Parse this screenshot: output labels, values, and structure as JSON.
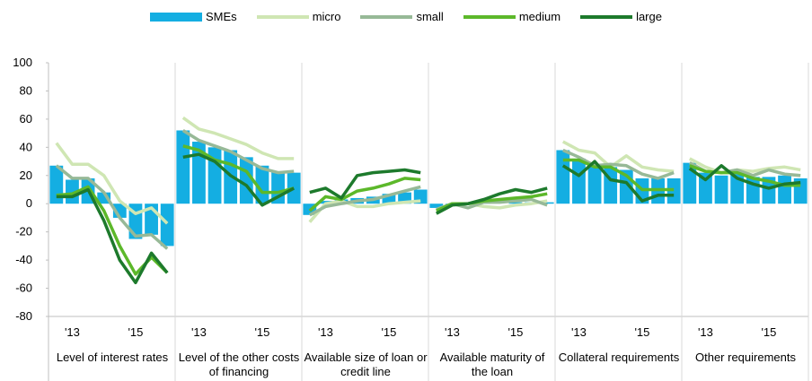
{
  "chart_data": {
    "type": "combo",
    "ylim": [
      -80,
      100
    ],
    "yticks": [
      -80,
      -60,
      -40,
      -20,
      0,
      20,
      40,
      60,
      80,
      100
    ],
    "categories": [
      null,
      "'13",
      null,
      null,
      null,
      "'15",
      null,
      null
    ],
    "panels": [
      "Level of interest rates",
      "Level of the other costs of financing",
      "Available size of loan or credit line",
      "Available maturity of the loan",
      "Collateral requirements",
      "Other requirements"
    ],
    "series": [
      {
        "name": "SMEs",
        "type": "bar",
        "color": "#14aee2",
        "values": [
          [
            27,
            17,
            18,
            8,
            -10,
            -25,
            -22,
            -30
          ],
          [
            52,
            44,
            40,
            38,
            33,
            27,
            23,
            22
          ],
          [
            -8,
            2,
            3,
            4,
            5,
            7,
            8,
            10
          ],
          [
            -3,
            -1,
            0,
            1,
            0,
            1,
            1,
            1
          ],
          [
            38,
            32,
            28,
            26,
            24,
            18,
            18,
            18
          ],
          [
            29,
            22,
            20,
            21,
            19,
            19,
            20,
            18
          ]
        ]
      },
      {
        "name": "micro",
        "type": "line",
        "color": "#cfe6b3",
        "values": [
          [
            43,
            28,
            28,
            20,
            2,
            -7,
            -3,
            -14
          ],
          [
            61,
            53,
            50,
            46,
            42,
            36,
            32,
            32
          ],
          [
            -13,
            0,
            2,
            -2,
            -2,
            0,
            1,
            2
          ],
          [
            -5,
            0,
            0,
            -2,
            -3,
            -1,
            0,
            2
          ],
          [
            44,
            38,
            36,
            26,
            34,
            26,
            24,
            23
          ],
          [
            32,
            26,
            22,
            24,
            23,
            25,
            26,
            24
          ]
        ]
      },
      {
        "name": "small",
        "type": "line",
        "color": "#97b997",
        "values": [
          [
            27,
            18,
            18,
            8,
            -10,
            -23,
            -22,
            -32
          ],
          [
            52,
            45,
            41,
            37,
            31,
            25,
            22,
            23
          ],
          [
            -8,
            -2,
            0,
            2,
            3,
            6,
            9,
            12
          ],
          [
            -4,
            0,
            -3,
            1,
            1,
            2,
            3,
            -1
          ],
          [
            38,
            33,
            27,
            28,
            27,
            21,
            18,
            22
          ],
          [
            29,
            23,
            22,
            24,
            20,
            24,
            21,
            20
          ]
        ]
      },
      {
        "name": "medium",
        "type": "line",
        "color": "#5cb82a",
        "values": [
          [
            6,
            7,
            12,
            -5,
            -30,
            -50,
            -38,
            -49
          ],
          [
            41,
            38,
            31,
            28,
            23,
            8,
            8,
            11
          ],
          [
            -5,
            5,
            3,
            9,
            11,
            14,
            18,
            17
          ],
          [
            -5,
            0,
            0,
            2,
            3,
            4,
            5,
            7
          ],
          [
            31,
            31,
            26,
            26,
            20,
            10,
            10,
            10
          ],
          [
            27,
            23,
            22,
            22,
            18,
            16,
            13,
            13
          ]
        ]
      },
      {
        "name": "large",
        "type": "line",
        "color": "#1d7a2c",
        "values": [
          [
            5,
            5,
            10,
            -12,
            -40,
            -56,
            -35,
            -49
          ],
          [
            33,
            35,
            30,
            20,
            13,
            -1,
            5,
            11
          ],
          [
            8,
            11,
            4,
            20,
            22,
            23,
            24,
            22
          ],
          [
            -7,
            -1,
            0,
            3,
            7,
            10,
            8,
            11
          ],
          [
            27,
            20,
            30,
            17,
            15,
            2,
            6,
            6
          ],
          [
            25,
            17,
            27,
            18,
            14,
            11,
            14,
            15
          ]
        ]
      }
    ]
  }
}
